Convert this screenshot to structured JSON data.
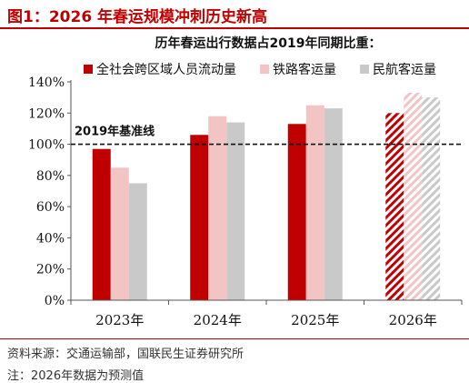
{
  "header": {
    "figure_title": "图1：2026 年春运规模冲刺历史新高"
  },
  "footer": {
    "source": "资料来源：交通运输部，国联民生证券研究所",
    "note_partial": "注：2026年数据为预测值"
  },
  "chart_data": {
    "type": "bar",
    "title": "历年春运出行数据占2019年同期比重：",
    "categories": [
      "2023年",
      "2024年",
      "2025年",
      "2026年"
    ],
    "series": [
      {
        "name": "全社会跨区域人员流动量",
        "color": "#c00000",
        "values": [
          97,
          106,
          113,
          120
        ]
      },
      {
        "name": "铁路客运量",
        "color": "#f2c4c4",
        "values": [
          85,
          118,
          125,
          133
        ]
      },
      {
        "name": "民航客运量",
        "color": "#c9c9c9",
        "values": [
          75,
          114,
          123,
          130
        ]
      }
    ],
    "hatched_categories": [
      "2026年"
    ],
    "ylim": [
      0,
      140
    ],
    "yticks": [
      0,
      20,
      40,
      60,
      80,
      100,
      120,
      140
    ],
    "ytick_format": "percent",
    "reference_line": {
      "value": 100,
      "label": "2019年基准线",
      "style": "dashed"
    },
    "legend_position": "top",
    "grid": false
  }
}
